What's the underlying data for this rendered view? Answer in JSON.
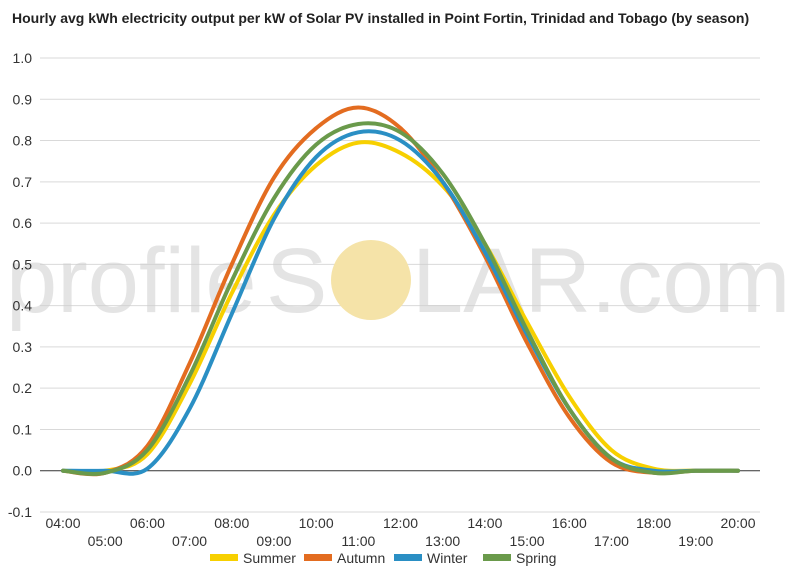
{
  "chart_data": {
    "type": "line",
    "title": "Hourly avg kWh electricity output per kW of Solar PV installed in Point Fortin, Trinidad and Tobago (by season)",
    "xlabel": "",
    "ylabel": "",
    "x": [
      "04:00",
      "05:00",
      "06:00",
      "07:00",
      "08:00",
      "09:00",
      "10:00",
      "11:00",
      "12:00",
      "13:00",
      "14:00",
      "15:00",
      "16:00",
      "17:00",
      "18:00",
      "19:00",
      "20:00"
    ],
    "ylim": [
      -0.1,
      1.0
    ],
    "y_ticks": [
      "-0.1",
      "0.0",
      "0.1",
      "0.2",
      "0.3",
      "0.4",
      "0.5",
      "0.6",
      "0.7",
      "0.8",
      "0.9",
      "1.0"
    ],
    "grid": true,
    "legend_position": "bottom",
    "series": [
      {
        "name": "Summer",
        "color": "#f7d000",
        "values": [
          0,
          0,
          0.04,
          0.21,
          0.43,
          0.62,
          0.74,
          0.795,
          0.77,
          0.69,
          0.55,
          0.36,
          0.18,
          0.05,
          0.005,
          0,
          0
        ]
      },
      {
        "name": "Autumn",
        "color": "#e36c20",
        "values": [
          0,
          -0.005,
          0.06,
          0.26,
          0.5,
          0.71,
          0.83,
          0.88,
          0.83,
          0.7,
          0.52,
          0.31,
          0.13,
          0.02,
          -0.005,
          0,
          0
        ]
      },
      {
        "name": "Winter",
        "color": "#2a8fc4",
        "values": [
          0,
          0,
          0.005,
          0.15,
          0.38,
          0.61,
          0.76,
          0.82,
          0.8,
          0.7,
          0.53,
          0.33,
          0.15,
          0.03,
          0,
          0,
          0
        ]
      },
      {
        "name": "Spring",
        "color": "#6a9a4b",
        "values": [
          0,
          -0.005,
          0.05,
          0.23,
          0.46,
          0.66,
          0.79,
          0.84,
          0.82,
          0.72,
          0.55,
          0.34,
          0.15,
          0.03,
          -0.005,
          0,
          0
        ]
      }
    ]
  },
  "watermark": {
    "text_left": "profile",
    "text_s": "S",
    "text_right": "LAR.com",
    "sun_color": "#f5e3a8"
  }
}
